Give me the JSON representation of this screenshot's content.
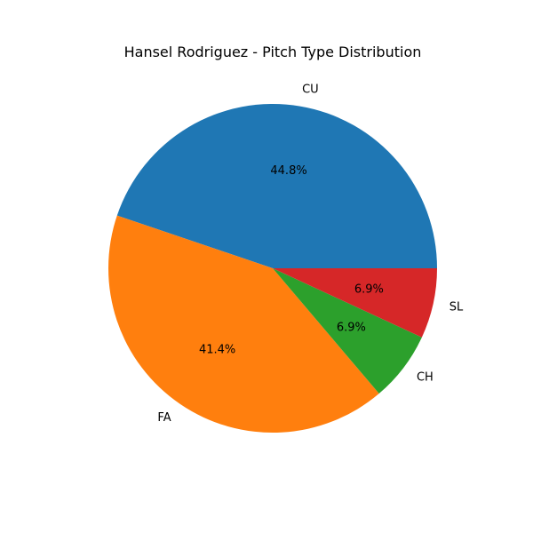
{
  "chart_data": {
    "type": "pie",
    "title": "Hansel Rodriguez - Pitch Type Distribution",
    "start_angle_deg": 0,
    "direction": "counterclockwise",
    "slices": [
      {
        "label": "CU",
        "value": 44.8,
        "pct_label": "44.8%",
        "color": "#1f77b4"
      },
      {
        "label": "FA",
        "value": 41.4,
        "pct_label": "41.4%",
        "color": "#ff7f0e"
      },
      {
        "label": "CH",
        "value": 6.9,
        "pct_label": "6.9%",
        "color": "#2ca02c"
      },
      {
        "label": "SL",
        "value": 6.9,
        "pct_label": "6.9%",
        "color": "#d62728"
      }
    ]
  }
}
